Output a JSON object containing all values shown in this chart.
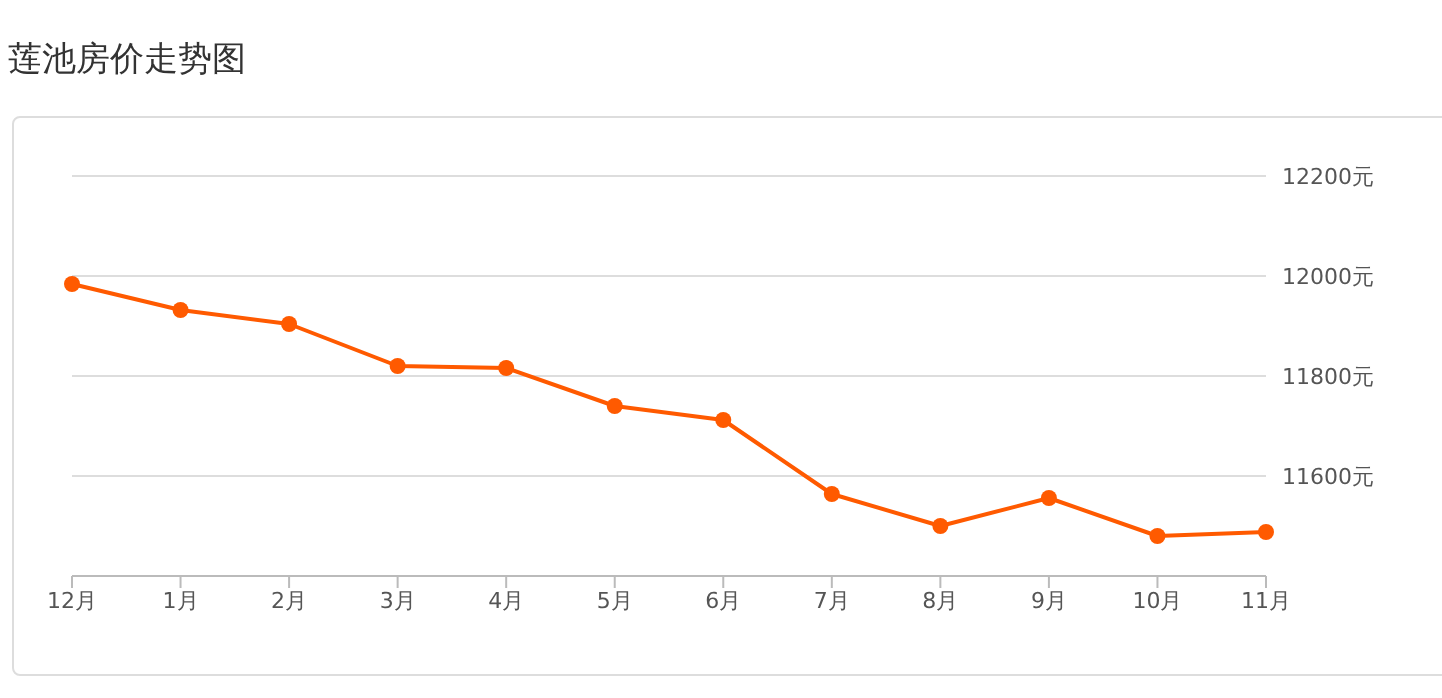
{
  "chart_data": {
    "type": "line",
    "title": "莲池房价走势图",
    "categories": [
      "12月",
      "1月",
      "2月",
      "3月",
      "4月",
      "5月",
      "6月",
      "7月",
      "8月",
      "9月",
      "10月",
      "11月"
    ],
    "series": [
      {
        "color": "#ff5a00",
        "values": [
          11984,
          11932,
          11904,
          11820,
          11816,
          11740,
          11712,
          11564,
          11500,
          11556,
          11480,
          11488
        ]
      }
    ],
    "ylim": [
      11400,
      12200
    ],
    "yticks": [
      {
        "value": 11600,
        "label": "11600元"
      },
      {
        "value": 11800,
        "label": "11800元"
      },
      {
        "value": 12000,
        "label": "12000元"
      },
      {
        "value": 12200,
        "label": "12200元"
      }
    ],
    "grid": "y",
    "marker": "circle",
    "line_style": "solid"
  }
}
